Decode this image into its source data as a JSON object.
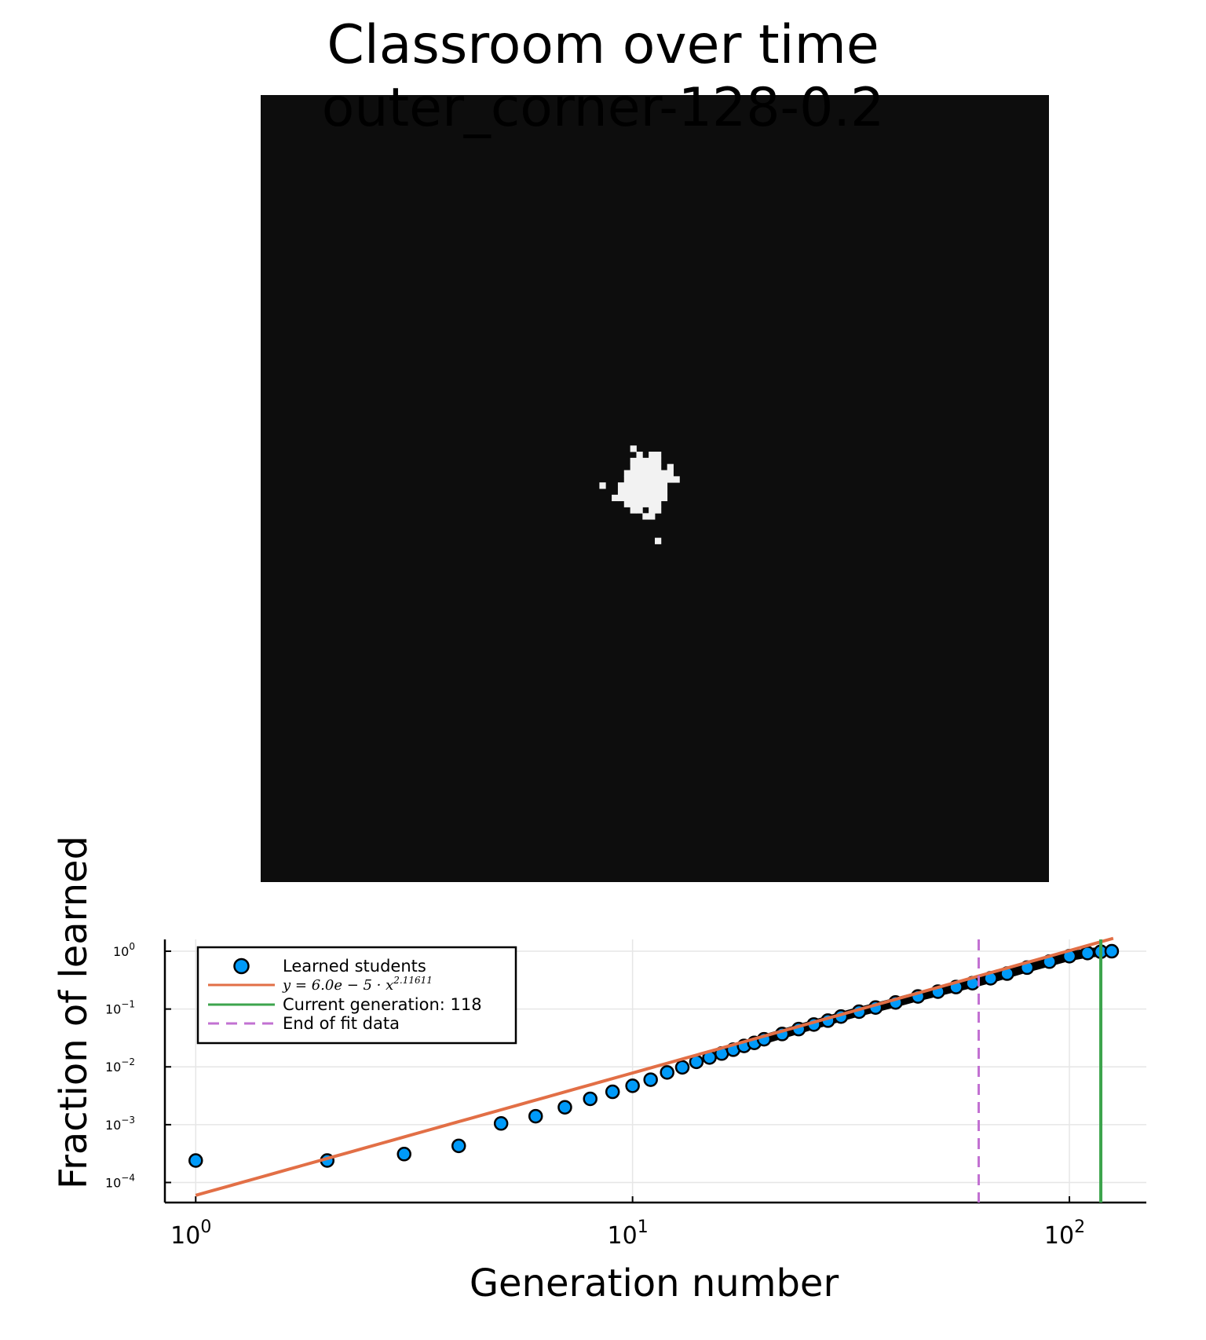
{
  "title": {
    "line1": "Classroom over time",
    "line2": "outer_corner-128-0.2"
  },
  "heatmap": {
    "type": "binary-grid",
    "grid_size": 128,
    "background_color": "#0d0d0d",
    "foreground_color": "#f2f2f2",
    "learned_cells": [
      [
        60,
        57
      ],
      [
        61,
        58
      ],
      [
        63,
        58
      ],
      [
        64,
        58
      ],
      [
        60,
        59
      ],
      [
        61,
        59
      ],
      [
        62,
        59
      ],
      [
        63,
        59
      ],
      [
        64,
        59
      ],
      [
        60,
        60
      ],
      [
        61,
        60
      ],
      [
        62,
        60
      ],
      [
        63,
        60
      ],
      [
        64,
        60
      ],
      [
        66,
        60
      ],
      [
        59,
        61
      ],
      [
        60,
        61
      ],
      [
        61,
        61
      ],
      [
        62,
        61
      ],
      [
        63,
        61
      ],
      [
        64,
        61
      ],
      [
        65,
        61
      ],
      [
        66,
        61
      ],
      [
        59,
        62
      ],
      [
        60,
        62
      ],
      [
        61,
        62
      ],
      [
        62,
        62
      ],
      [
        63,
        62
      ],
      [
        64,
        62
      ],
      [
        65,
        62
      ],
      [
        66,
        62
      ],
      [
        67,
        62
      ],
      [
        55,
        63
      ],
      [
        58,
        63
      ],
      [
        59,
        63
      ],
      [
        60,
        63
      ],
      [
        61,
        63
      ],
      [
        62,
        63
      ],
      [
        63,
        63
      ],
      [
        64,
        63
      ],
      [
        65,
        63
      ],
      [
        58,
        64
      ],
      [
        59,
        64
      ],
      [
        60,
        64
      ],
      [
        61,
        64
      ],
      [
        62,
        64
      ],
      [
        63,
        64
      ],
      [
        64,
        64
      ],
      [
        65,
        64
      ],
      [
        57,
        65
      ],
      [
        58,
        65
      ],
      [
        59,
        65
      ],
      [
        60,
        65
      ],
      [
        61,
        65
      ],
      [
        62,
        65
      ],
      [
        63,
        65
      ],
      [
        64,
        65
      ],
      [
        65,
        65
      ],
      [
        59,
        66
      ],
      [
        60,
        66
      ],
      [
        61,
        66
      ],
      [
        62,
        66
      ],
      [
        63,
        66
      ],
      [
        64,
        66
      ],
      [
        60,
        67
      ],
      [
        61,
        67
      ],
      [
        63,
        67
      ],
      [
        64,
        67
      ],
      [
        62,
        68
      ],
      [
        63,
        68
      ],
      [
        64,
        72
      ]
    ]
  },
  "chart_data": {
    "type": "scatter",
    "xlabel": "Generation number",
    "ylabel": "Fraction of learned",
    "xscale": "log",
    "yscale": "log",
    "xlim": [
      0.85,
      150
    ],
    "ylim": [
      4.5e-05,
      1.6
    ],
    "grid": true,
    "legend_position": "top-left",
    "x_ticks": [
      {
        "value": 1,
        "base": "10",
        "exp": "0"
      },
      {
        "value": 10,
        "base": "10",
        "exp": "1"
      },
      {
        "value": 100,
        "base": "10",
        "exp": "2"
      }
    ],
    "y_ticks": [
      {
        "value": 1,
        "base": "10",
        "exp": "0"
      },
      {
        "value": 0.1,
        "base": "10",
        "exp": "−1"
      },
      {
        "value": 0.01,
        "base": "10",
        "exp": "−2"
      },
      {
        "value": 0.001,
        "base": "10",
        "exp": "−3"
      },
      {
        "value": 0.0001,
        "base": "10",
        "exp": "−4"
      }
    ],
    "series": [
      {
        "name": "Learned students",
        "kind": "scatter",
        "color": "#009af9",
        "x": [
          1,
          2,
          3,
          4,
          5,
          6,
          7,
          8,
          9,
          10,
          11,
          12,
          13,
          14,
          15,
          16,
          17,
          18,
          19,
          20,
          22,
          24,
          26,
          28,
          30,
          33,
          36,
          40,
          45,
          50,
          55,
          60,
          66,
          72,
          80,
          90,
          100,
          110,
          118,
          125
        ],
        "y": [
          0.00024,
          0.00024,
          0.00031,
          0.00043,
          0.00105,
          0.0014,
          0.002,
          0.0028,
          0.0037,
          0.0047,
          0.006,
          0.008,
          0.0098,
          0.0122,
          0.0145,
          0.017,
          0.0198,
          0.023,
          0.026,
          0.03,
          0.037,
          0.045,
          0.054,
          0.063,
          0.074,
          0.09,
          0.106,
          0.13,
          0.165,
          0.2,
          0.24,
          0.28,
          0.34,
          0.41,
          0.52,
          0.66,
          0.82,
          0.93,
          0.98,
          1.0
        ]
      },
      {
        "name": "y = 6.0e − 5 · x^2.11611",
        "kind": "line",
        "color": "#e26f46",
        "formula_base": "y = 6.0e − 5 · x",
        "formula_exp": "2.11611",
        "coefficient": 6e-05,
        "exponent": 2.11611,
        "x_range": [
          1,
          126
        ]
      },
      {
        "name": "Current generation: 118",
        "kind": "vline",
        "color": "#3da44d",
        "x": 118
      },
      {
        "name": "End of fit data",
        "kind": "vline-dashed",
        "color": "#c271d2",
        "x": 62
      }
    ]
  }
}
